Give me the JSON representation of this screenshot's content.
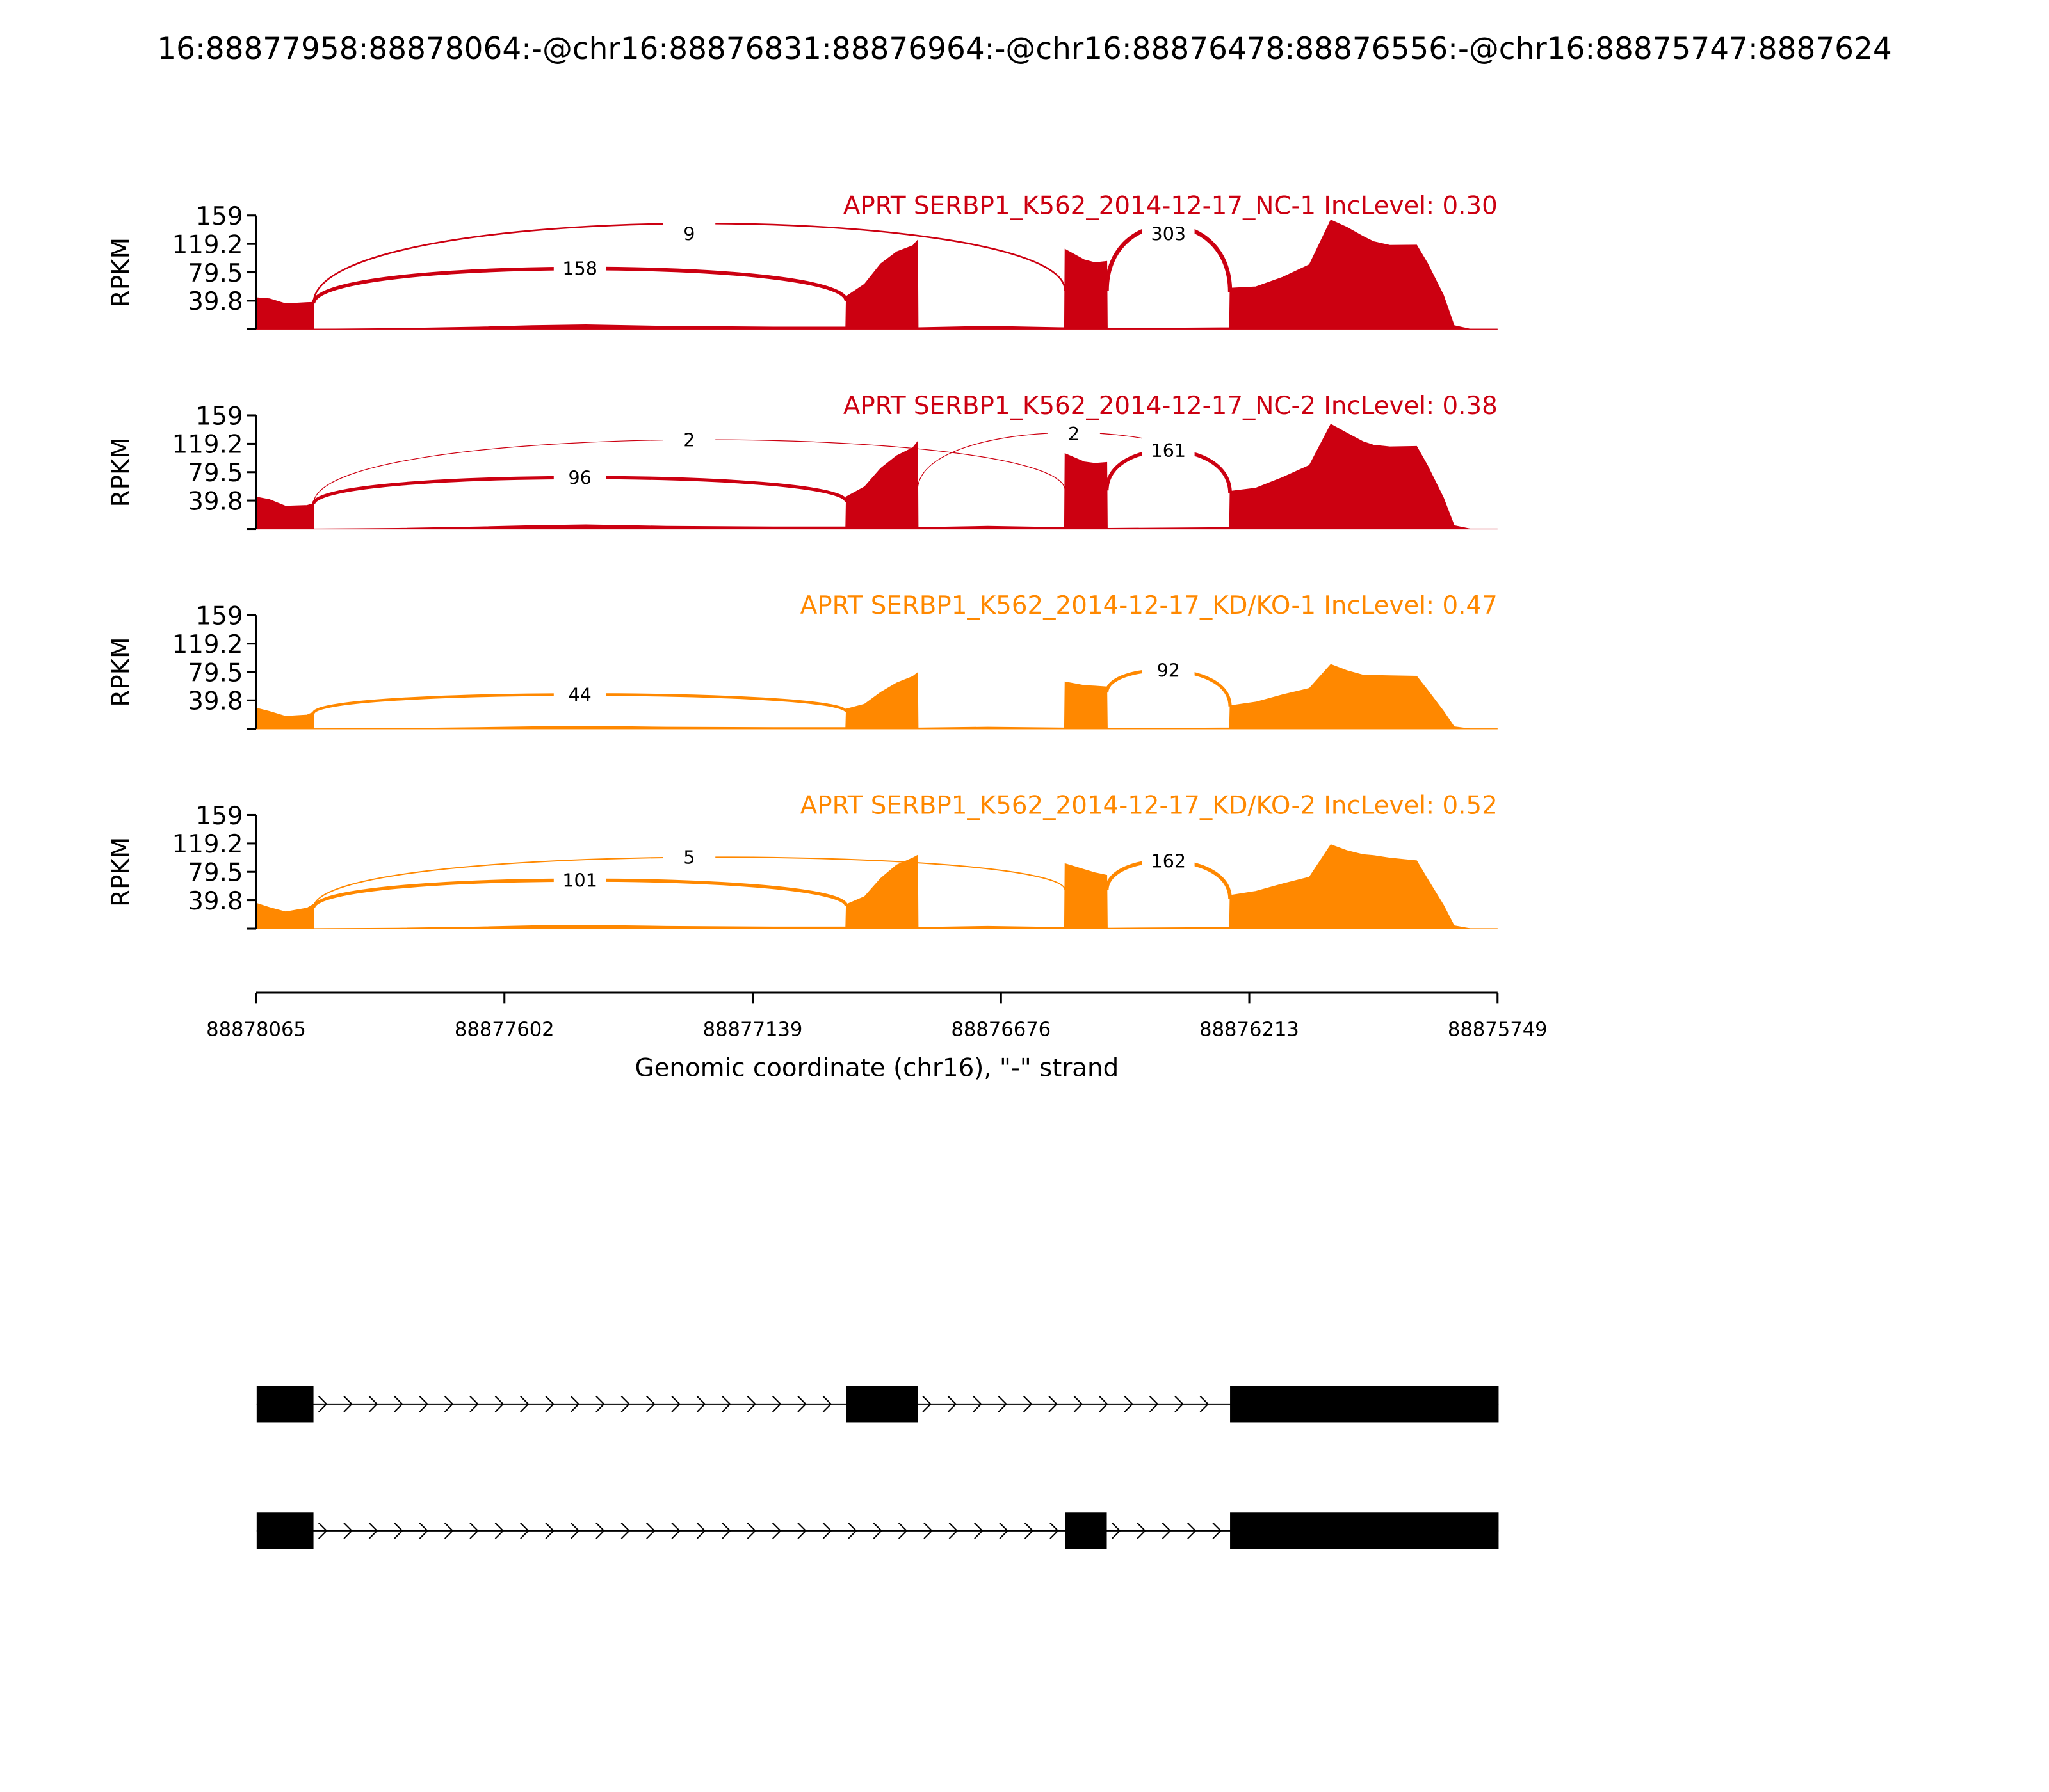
{
  "title": "16:88877958:88878064:-@chr16:88876831:88876964:-@chr16:88876478:88876556:-@chr16:88875747:8887624",
  "chart_data": {
    "type": "area",
    "title": "16:88877958:88878064:-@chr16:88876831:88876964:-@chr16:88876478:88876556:-@chr16:88875747:8887624",
    "xlabel": "Genomic coordinate (chr16), \"-\" strand",
    "ylabel": "RPKM",
    "xlim": [
      88878065,
      88875749
    ],
    "ylim": [
      0,
      159
    ],
    "xticks": [
      "88878065",
      "88877602",
      "88877139",
      "88876676",
      "88876213",
      "88875749"
    ],
    "yticks": [
      "159",
      "119.2",
      "79.5",
      "39.8"
    ],
    "exons": [
      [
        88878064,
        88877958
      ],
      [
        88876964,
        88876831
      ],
      [
        88876556,
        88876478
      ],
      [
        88876248,
        88875747
      ]
    ],
    "series": [
      {
        "name": "APRT SERBP1_K562_2014-12-17_NC-1 IncLevel: 0.30",
        "color": "#CC0011",
        "scale": 1.0,
        "junctions": [
          {
            "from": 88877958,
            "to": 88876964,
            "count": "158",
            "height": 85
          },
          {
            "from": 88877958,
            "to": 88876556,
            "count": "9",
            "height": 148
          },
          {
            "from": 88876478,
            "to": 88876248,
            "count": "303",
            "height": 145
          }
        ]
      },
      {
        "name": "APRT SERBP1_K562_2014-12-17_NC-2 IncLevel: 0.38",
        "color": "#CC0011",
        "scale": 0.96,
        "junctions": [
          {
            "from": 88877958,
            "to": 88876964,
            "count": "96",
            "height": 72
          },
          {
            "from": 88877958,
            "to": 88876556,
            "count": "2",
            "height": 125
          },
          {
            "from": 88876831,
            "to": 88876248,
            "count": "2",
            "height": 135
          },
          {
            "from": 88876478,
            "to": 88876248,
            "count": "161",
            "height": 110
          }
        ]
      },
      {
        "name": "APRT SERBP1_K562_2014-12-17_KD/KO-1 IncLevel: 0.47",
        "color": "#FF8800",
        "scale": 0.6,
        "junctions": [
          {
            "from": 88877958,
            "to": 88876964,
            "count": "44",
            "height": 48
          },
          {
            "from": 88876478,
            "to": 88876248,
            "count": "92",
            "height": 82
          }
        ]
      },
      {
        "name": "APRT SERBP1_K562_2014-12-17_KD/KO-2 IncLevel: 0.52",
        "color": "#FF8800",
        "scale": 0.8,
        "junctions": [
          {
            "from": 88877958,
            "to": 88876964,
            "count": "101",
            "height": 68
          },
          {
            "from": 88877958,
            "to": 88876556,
            "count": "5",
            "height": 100
          },
          {
            "from": 88876478,
            "to": 88876248,
            "count": "162",
            "height": 95
          }
        ]
      }
    ],
    "coverage_profile": [
      [
        88878065,
        44
      ],
      [
        88878040,
        40
      ],
      [
        88878010,
        33
      ],
      [
        88877970,
        37
      ],
      [
        88877958,
        40
      ],
      [
        88877957,
        0
      ],
      [
        88877800,
        1
      ],
      [
        88877650,
        3
      ],
      [
        88877550,
        5
      ],
      [
        88877450,
        6
      ],
      [
        88877300,
        4
      ],
      [
        88877100,
        3
      ],
      [
        88876965,
        3
      ],
      [
        88876964,
        44
      ],
      [
        88876930,
        60
      ],
      [
        88876900,
        90
      ],
      [
        88876870,
        110
      ],
      [
        88876840,
        120
      ],
      [
        88876831,
        126
      ],
      [
        88876830,
        2
      ],
      [
        88876700,
        4
      ],
      [
        88876557,
        2
      ],
      [
        88876556,
        113
      ],
      [
        88876520,
        100
      ],
      [
        88876500,
        95
      ],
      [
        88876478,
        94
      ],
      [
        88876477,
        1
      ],
      [
        88876249,
        2
      ],
      [
        88876248,
        58
      ],
      [
        88876200,
        62
      ],
      [
        88876150,
        75
      ],
      [
        88876100,
        90
      ],
      [
        88876060,
        150
      ],
      [
        88876030,
        140
      ],
      [
        88876000,
        130
      ],
      [
        88875980,
        125
      ],
      [
        88875950,
        120
      ],
      [
        88875900,
        118
      ],
      [
        88875880,
        90
      ],
      [
        88875850,
        45
      ],
      [
        88875830,
        5
      ],
      [
        88875800,
        0
      ],
      [
        88875749,
        0
      ]
    ],
    "transcripts": [
      {
        "exons": [
          [
            88878064,
            88877958
          ],
          [
            88876964,
            88876831
          ],
          [
            88876248,
            88875747
          ]
        ]
      },
      {
        "exons": [
          [
            88878064,
            88877958
          ],
          [
            88876556,
            88876478
          ],
          [
            88876248,
            88875747
          ]
        ]
      }
    ]
  }
}
